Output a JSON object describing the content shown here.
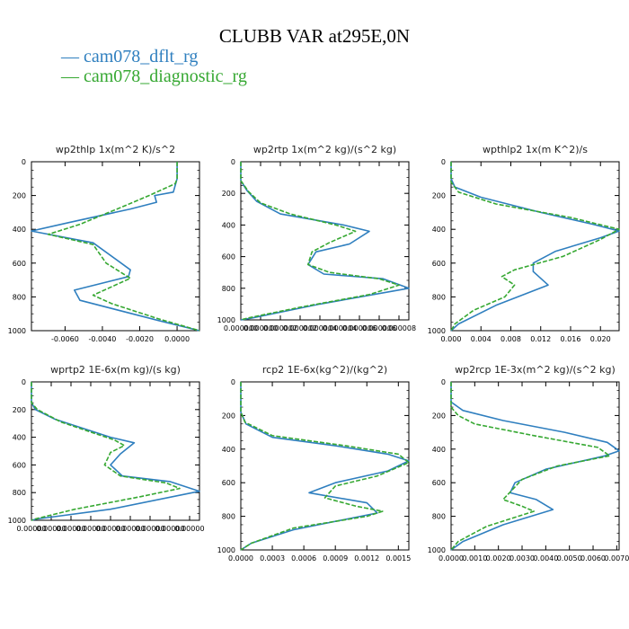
{
  "title": "CLUBB VAR at295E,0N",
  "legend": [
    {
      "label": "cam078_dflt_rg",
      "color": "#2f7fbf"
    },
    {
      "label": "cam078_diagnostic_rg",
      "color": "#36a832"
    }
  ],
  "chart_data": [
    {
      "type": "line",
      "title": "wp2thlp   1x(m^2 K)/s^2",
      "xlim": [
        -0.0078,
        0.0012
      ],
      "ylim": [
        1000,
        0
      ],
      "xticks": [
        -0.006,
        -0.004,
        -0.002,
        0.0
      ],
      "xtick_labels": [
        "-0.0060",
        "-0.0040",
        "-0.0020",
        "0.0000"
      ],
      "yticks": [
        0,
        200,
        400,
        600,
        800,
        1000
      ],
      "ytick_labels": [
        "0",
        "200",
        "400",
        "600",
        "800",
        "1000"
      ],
      "series": [
        {
          "name": "cam078_dflt_rg",
          "color": "#2f7fbf",
          "dashed": false,
          "x": [
            0.0,
            0.0,
            -0.0002,
            -0.0012,
            -0.0011,
            -0.0025,
            -0.0058,
            -0.0078,
            -0.0045,
            -0.0025,
            -0.0026,
            -0.0055,
            -0.0052,
            -0.001,
            0.0012
          ],
          "y": [
            0,
            100,
            180,
            200,
            240,
            280,
            360,
            410,
            480,
            640,
            680,
            760,
            820,
            940,
            1000
          ]
        },
        {
          "name": "cam078_diagnostic_rg",
          "color": "#36a832",
          "dashed": true,
          "x": [
            0.0,
            0.0,
            -0.0001,
            -0.0015,
            -0.003,
            -0.0052,
            -0.0069,
            -0.0045,
            -0.0038,
            -0.0025,
            -0.0045,
            -0.0035,
            -0.001,
            0.0012
          ],
          "y": [
            0,
            100,
            130,
            200,
            270,
            370,
            430,
            490,
            600,
            690,
            790,
            840,
            930,
            1000
          ]
        }
      ]
    },
    {
      "type": "line",
      "title": "wp2rtp   1x(m^2 kg)/(s^2 kg)",
      "xlim": [
        0.0,
        8.5e-06
      ],
      "ylim": [
        1000,
        0
      ],
      "xticks": [
        0,
        1e-06,
        2e-06,
        3e-06,
        4e-06,
        5e-06,
        6e-06,
        7e-06,
        8e-06
      ],
      "xtick_labels": [
        "0.000000",
        "0.000000",
        "0.000002",
        "0.000002",
        "0.000004",
        "0.000004",
        "0.000006",
        "0.000006",
        "0.000008"
      ],
      "yticks": [
        0,
        200,
        400,
        600,
        800,
        1000
      ],
      "ytick_labels": [
        "0",
        "200",
        "400",
        "600",
        "800",
        "1000"
      ],
      "series": [
        {
          "name": "cam078_dflt_rg",
          "color": "#2f7fbf",
          "dashed": false,
          "x": [
            0.0,
            0.0,
            3e-07,
            8e-07,
            2e-06,
            5.2e-06,
            6.5e-06,
            5.5e-06,
            3.8e-06,
            3.4e-06,
            4.2e-06,
            7.2e-06,
            8.5e-06,
            4e-06,
            5e-07,
            0.0
          ],
          "y": [
            0,
            120,
            180,
            250,
            330,
            400,
            440,
            520,
            570,
            650,
            710,
            740,
            800,
            900,
            990,
            1000
          ]
        },
        {
          "name": "cam078_diagnostic_rg",
          "color": "#36a832",
          "dashed": true,
          "x": [
            0.0,
            0.0,
            4e-07,
            1e-06,
            2.5e-06,
            4.8e-06,
            5.8e-06,
            4.5e-06,
            3.6e-06,
            3.4e-06,
            4.5e-06,
            7e-06,
            8e-06,
            6.5e-06,
            3e-06,
            3e-07,
            0.0
          ],
          "y": [
            0,
            120,
            190,
            260,
            330,
            400,
            440,
            510,
            570,
            650,
            700,
            740,
            780,
            840,
            920,
            990,
            1000
          ]
        }
      ]
    },
    {
      "type": "line",
      "title": "wpthlp2   1x(m K^2)/s",
      "xlim": [
        0.0,
        0.0225
      ],
      "ylim": [
        1000,
        0
      ],
      "xticks": [
        0.0,
        0.004,
        0.008,
        0.012,
        0.016,
        0.02
      ],
      "xtick_labels": [
        "0.000",
        "0.004",
        "0.008",
        "0.012",
        "0.016",
        "0.020"
      ],
      "yticks": [
        0,
        200,
        400,
        600,
        800,
        1000
      ],
      "ytick_labels": [
        "0",
        "200",
        "400",
        "600",
        "800",
        "1000"
      ],
      "series": [
        {
          "name": "cam078_dflt_rg",
          "color": "#2f7fbf",
          "dashed": false,
          "x": [
            0.0,
            0.0,
            0.0005,
            0.004,
            0.012,
            0.019,
            0.0225,
            0.02,
            0.014,
            0.011,
            0.011,
            0.013,
            0.006,
            0.001,
            0.0
          ],
          "y": [
            0,
            100,
            150,
            210,
            300,
            370,
            410,
            450,
            530,
            600,
            650,
            730,
            850,
            960,
            1000
          ]
        },
        {
          "name": "cam078_diagnostic_rg",
          "color": "#36a832",
          "dashed": true,
          "x": [
            0.0,
            0.0,
            0.001,
            0.006,
            0.016,
            0.0225,
            0.02,
            0.015,
            0.0085,
            0.0068,
            0.0085,
            0.0072,
            0.003,
            0.0005,
            0.0
          ],
          "y": [
            0,
            120,
            180,
            250,
            330,
            400,
            460,
            560,
            640,
            680,
            730,
            800,
            880,
            960,
            1000
          ]
        }
      ]
    },
    {
      "type": "line",
      "title": "wprtp2   1E-6x(m kg)/(s kg)",
      "xlim": [
        0.0,
        8.5e-06
      ],
      "ylim": [
        1000,
        0
      ],
      "xticks": [
        0,
        1e-06,
        2e-06,
        3e-06,
        4e-06,
        5e-06,
        6e-06,
        7e-06,
        8e-06
      ],
      "xtick_labels": [
        "0.00000",
        "0.00000",
        "0.00000",
        "0.00000",
        "0.00000",
        "0.00000",
        "0.00000",
        "0.00000",
        "0.00000"
      ],
      "yticks": [
        0,
        200,
        400,
        600,
        800,
        1000
      ],
      "ytick_labels": [
        "0",
        "200",
        "400",
        "600",
        "800",
        "1000"
      ],
      "series": [
        {
          "name": "cam078_dflt_rg",
          "color": "#2f7fbf",
          "dashed": false,
          "x": [
            0.0,
            0.0,
            2e-07,
            1.2e-06,
            4e-06,
            5.2e-06,
            4.5e-06,
            4e-06,
            4.6e-06,
            7e-06,
            8.5e-06,
            4e-06,
            3e-07,
            0.0
          ],
          "y": [
            0,
            150,
            200,
            270,
            400,
            440,
            520,
            600,
            680,
            720,
            790,
            920,
            990,
            1000
          ]
        },
        {
          "name": "cam078_diagnostic_rg",
          "color": "#36a832",
          "dashed": true,
          "x": [
            0.0,
            0.0,
            3e-07,
            1.5e-06,
            4.2e-06,
            4.7e-06,
            4e-06,
            3.7e-06,
            4.5e-06,
            6.8e-06,
            7.5e-06,
            5.5e-06,
            2.2e-06,
            2e-07,
            0.0
          ],
          "y": [
            0,
            150,
            200,
            290,
            420,
            460,
            510,
            600,
            680,
            730,
            770,
            830,
            920,
            990,
            1000
          ]
        }
      ]
    },
    {
      "type": "line",
      "title": "rcp2   1E-6x(kg^2)/(kg^2)",
      "xlim": [
        0.0,
        0.0016
      ],
      "ylim": [
        1000,
        0
      ],
      "xticks": [
        0.0,
        0.0003,
        0.0006,
        0.0009,
        0.0012,
        0.0015
      ],
      "xtick_labels": [
        "0.0000",
        "0.0003",
        "0.0006",
        "0.0009",
        "0.0012",
        "0.0015"
      ],
      "yticks": [
        0,
        200,
        400,
        600,
        800,
        1000
      ],
      "ytick_labels": [
        "0",
        "200",
        "400",
        "600",
        "800",
        "1000"
      ],
      "series": [
        {
          "name": "cam078_dflt_rg",
          "color": "#2f7fbf",
          "dashed": false,
          "x": [
            0.0,
            0.0,
            5e-05,
            0.0003,
            0.0009,
            0.0014,
            0.0016,
            0.0014,
            0.0009,
            0.00065,
            0.0012,
            0.0013,
            0.0005,
            0.0001,
            0.0
          ],
          "y": [
            0,
            180,
            250,
            330,
            380,
            430,
            470,
            530,
            600,
            660,
            720,
            780,
            880,
            960,
            1000
          ]
        },
        {
          "name": "cam078_diagnostic_rg",
          "color": "#36a832",
          "dashed": true,
          "x": [
            0.0,
            0.0,
            4e-05,
            0.0003,
            0.001,
            0.0015,
            0.0016,
            0.0013,
            0.0009,
            0.0008,
            0.0011,
            0.00135,
            0.0012,
            0.0005,
            0.0001,
            0.0
          ],
          "y": [
            0,
            180,
            240,
            320,
            380,
            430,
            480,
            560,
            620,
            690,
            740,
            770,
            800,
            870,
            960,
            1000
          ]
        }
      ]
    },
    {
      "type": "line",
      "title": "wp2rcp   1E-3x(m^2 kg)/(s^2 kg)",
      "xlim": [
        0.0,
        0.0071
      ],
      "ylim": [
        1000,
        0
      ],
      "xticks": [
        0.0,
        0.001,
        0.002,
        0.003,
        0.004,
        0.005,
        0.006,
        0.007
      ],
      "xtick_labels": [
        "0.0000",
        "0.0010",
        "0.0020",
        "0.0030",
        "0.0040",
        "0.0050",
        "0.0060",
        "0.0070"
      ],
      "yticks": [
        0,
        200,
        400,
        600,
        800,
        1000
      ],
      "ytick_labels": [
        "0",
        "200",
        "400",
        "600",
        "800",
        "1000"
      ],
      "series": [
        {
          "name": "cam078_dflt_rg",
          "color": "#2f7fbf",
          "dashed": false,
          "x": [
            0.0,
            0.0,
            0.0005,
            0.0022,
            0.0048,
            0.0066,
            0.0071,
            0.0065,
            0.004,
            0.0027,
            0.0025,
            0.0036,
            0.0043,
            0.0022,
            0.0005,
            0.0
          ],
          "y": [
            0,
            120,
            170,
            230,
            300,
            360,
            410,
            440,
            520,
            600,
            660,
            700,
            760,
            850,
            950,
            1000
          ]
        },
        {
          "name": "cam078_diagnostic_rg",
          "color": "#36a832",
          "dashed": true,
          "x": [
            0.0,
            0.0,
            0.0003,
            0.001,
            0.0035,
            0.0062,
            0.0067,
            0.0045,
            0.003,
            0.0022,
            0.003,
            0.0035,
            0.0015,
            0.0003,
            0.0
          ],
          "y": [
            0,
            150,
            200,
            250,
            320,
            390,
            440,
            500,
            580,
            700,
            740,
            770,
            860,
            950,
            1000
          ]
        }
      ]
    }
  ]
}
